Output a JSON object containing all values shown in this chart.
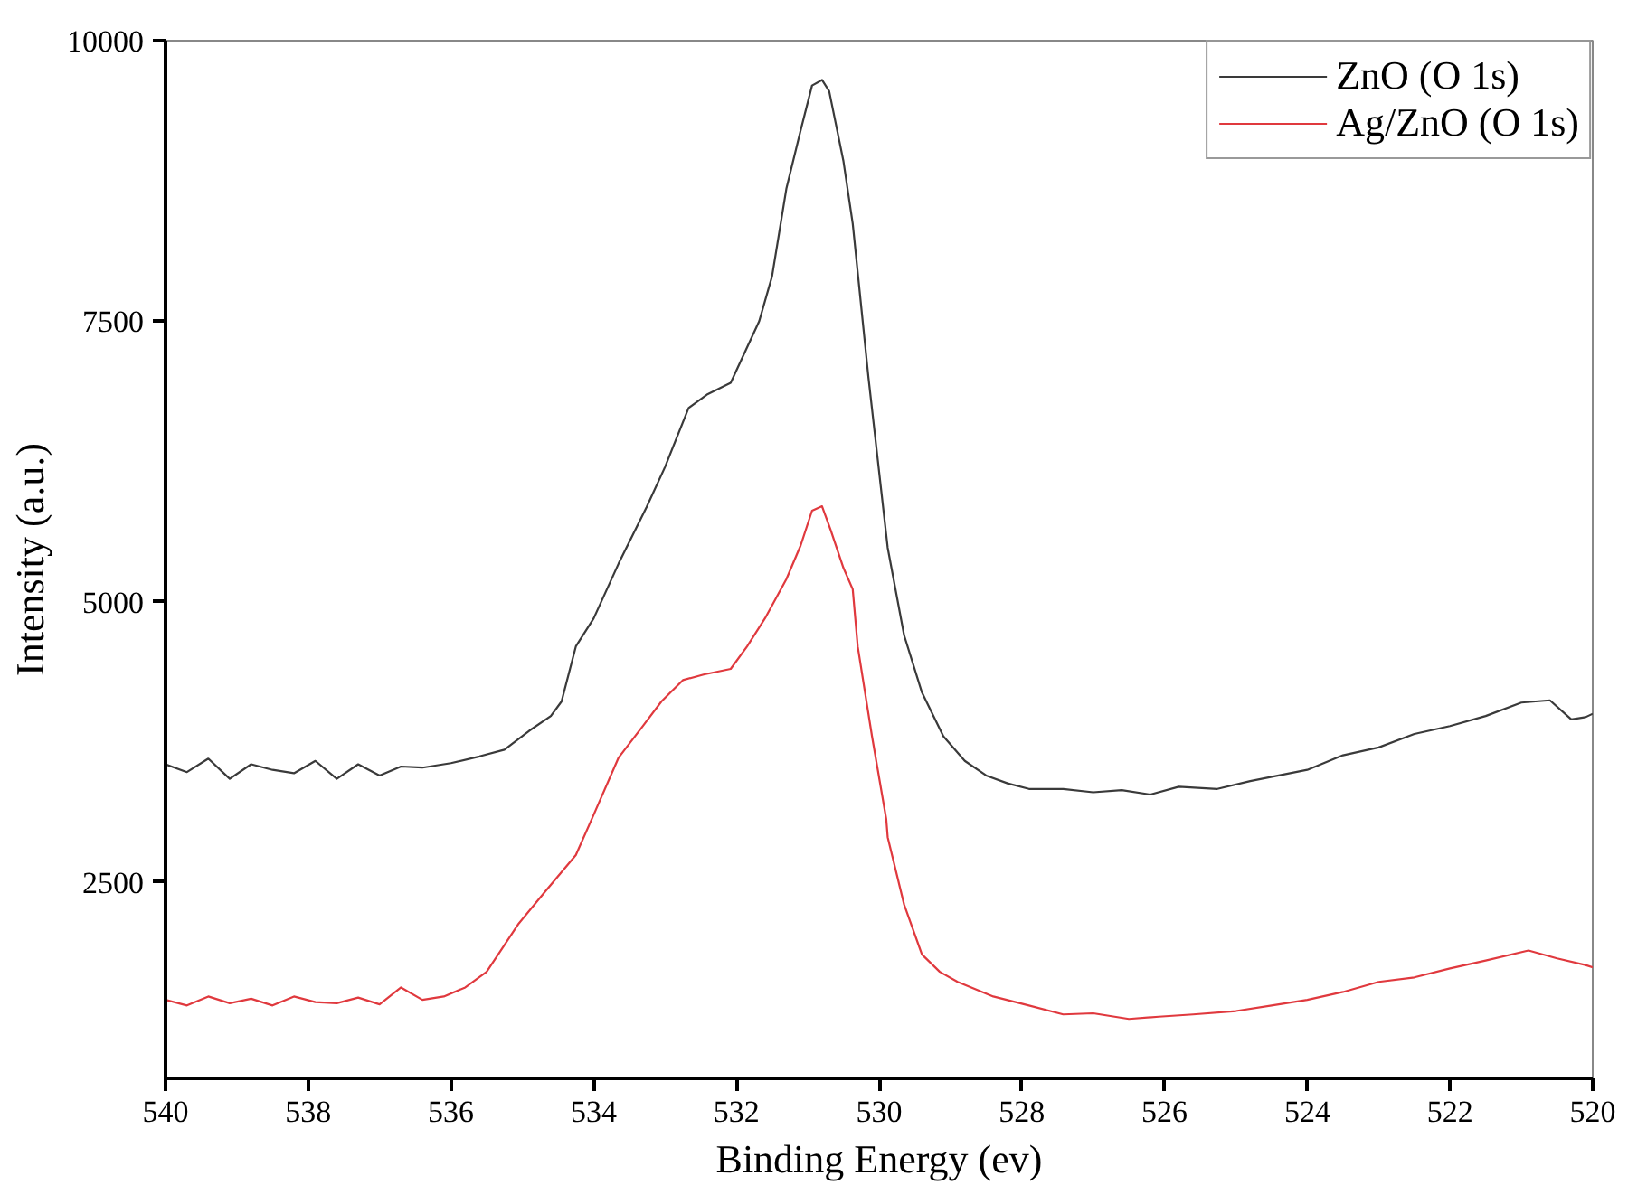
{
  "chart_data": {
    "type": "line",
    "xlabel": "Binding Energy (ev)",
    "ylabel": "Intensity (a.u.)",
    "xlim": [
      540,
      520
    ],
    "ylim": [
      750,
      10000
    ],
    "xticks": [
      540,
      538,
      536,
      534,
      532,
      530,
      528,
      526,
      524,
      522,
      520
    ],
    "yticks": [
      2500,
      5000,
      7500,
      10000
    ],
    "grid": false,
    "legend": "top right",
    "marker": "none",
    "line_style": "solid",
    "series": [
      {
        "name": "ZnO (O 1s)",
        "color": "#3a3a3a",
        "x": [
          540,
          539.7,
          539.4,
          539.1,
          538.8,
          538.5,
          538.2,
          537.9,
          537.6,
          537.3,
          537.0,
          536.7,
          536.4,
          536.0,
          535.6,
          535.25,
          534.9,
          534.6,
          534.45,
          534.25,
          534.0,
          533.65,
          533.26,
          533.0,
          532.67,
          532.4,
          532.08,
          531.68,
          531.5,
          531.3,
          531.1,
          530.94,
          530.8,
          530.7,
          530.5,
          530.37,
          530.15,
          529.88,
          529.65,
          529.4,
          529.1,
          528.8,
          528.5,
          528.2,
          527.9,
          527.42,
          527.0,
          526.6,
          526.2,
          525.8,
          525.26,
          524.8,
          524.4,
          524.0,
          523.5,
          523.0,
          522.5,
          522.0,
          521.5,
          521.0,
          520.6,
          520.3,
          520.1,
          520.0
        ],
        "values": [
          3550,
          3480,
          3600,
          3420,
          3550,
          3500,
          3470,
          3580,
          3420,
          3550,
          3450,
          3530,
          3520,
          3560,
          3620,
          3680,
          3850,
          3980,
          4110,
          4600,
          4850,
          5340,
          5840,
          6200,
          6726,
          6850,
          6950,
          7500,
          7900,
          8680,
          9200,
          9600,
          9650,
          9550,
          8926,
          8370,
          7000,
          5480,
          4700,
          4190,
          3800,
          3580,
          3450,
          3380,
          3330,
          3330,
          3300,
          3320,
          3280,
          3350,
          3330,
          3400,
          3450,
          3500,
          3630,
          3700,
          3820,
          3890,
          3980,
          4100,
          4120,
          3950,
          3970,
          4000
        ]
      },
      {
        "name": "Ag/ZnO (O 1s)",
        "color": "#e0393e",
        "x": [
          540,
          539.7,
          539.4,
          539.1,
          538.8,
          538.5,
          538.2,
          537.9,
          537.6,
          537.3,
          537.0,
          536.7,
          536.4,
          536.1,
          535.8,
          535.5,
          535.05,
          534.7,
          534.25,
          534.0,
          533.65,
          533.3,
          533.05,
          532.75,
          532.46,
          532.08,
          531.85,
          531.6,
          531.3,
          531.1,
          530.94,
          530.8,
          530.68,
          530.5,
          530.37,
          530.3,
          530.1,
          529.9,
          529.88,
          529.65,
          529.4,
          529.15,
          528.9,
          528.4,
          527.9,
          527.42,
          527.0,
          526.5,
          526.08,
          525.6,
          525.0,
          524.5,
          524.0,
          523.5,
          523.0,
          522.5,
          522.0,
          521.5,
          520.9,
          520.5,
          520.1,
          520.0
        ],
        "values": [
          1450,
          1400,
          1480,
          1420,
          1460,
          1400,
          1480,
          1430,
          1420,
          1470,
          1410,
          1560,
          1450,
          1480,
          1560,
          1700,
          2130,
          2400,
          2740,
          3100,
          3610,
          3900,
          4110,
          4300,
          4350,
          4400,
          4600,
          4850,
          5200,
          5500,
          5810,
          5850,
          5640,
          5300,
          5110,
          4600,
          3800,
          3060,
          2900,
          2300,
          1855,
          1700,
          1610,
          1480,
          1400,
          1320,
          1330,
          1280,
          1300,
          1320,
          1350,
          1400,
          1450,
          1520,
          1610,
          1650,
          1730,
          1800,
          1890,
          1820,
          1760,
          1740
        ]
      }
    ]
  }
}
